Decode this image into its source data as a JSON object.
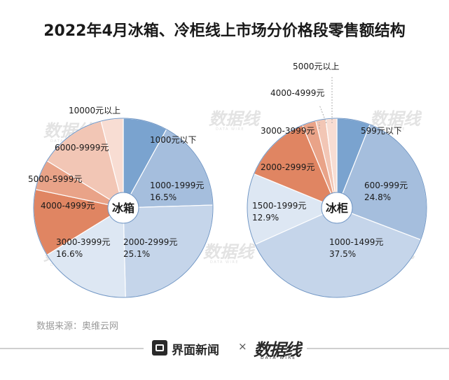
{
  "title": "2022年4月冰箱、冷柜线上市场分价格段零售额结构",
  "source": "数据来源：奥维云网",
  "footer": {
    "brand_left": "界面新闻",
    "separator": "×",
    "brand_right": "数据线",
    "brand_right_sub": "DATA WIRE"
  },
  "watermark": {
    "text": "数据线",
    "sub": "DATA WIRE"
  },
  "colors": {
    "blue_dark": "#7aa3cf",
    "blue_mid": "#a5bedd",
    "blue_light": "#c5d5ea",
    "blue_pale": "#dde7f3",
    "orange_dark": "#e08562",
    "orange_mid": "#e9a388",
    "orange_light": "#f2c6b5",
    "orange_pale": "#f8ddd3"
  },
  "chart_data": [
    {
      "type": "pie",
      "center_label": "冰箱",
      "slices": [
        {
          "label": "1000元以下",
          "value": 8.0,
          "value_label": "",
          "color": "#7aa3cf"
        },
        {
          "label": "1000-1999元",
          "value": 16.5,
          "value_label": "16.5%",
          "color": "#a5bedd"
        },
        {
          "label": "2000-2999元",
          "value": 25.1,
          "value_label": "25.1%",
          "color": "#c5d5ea"
        },
        {
          "label": "3000-3999元",
          "value": 16.6,
          "value_label": "16.6%",
          "color": "#dde7f3"
        },
        {
          "label": "4000-4999元",
          "value": 12.1,
          "value_label": "",
          "color": "#e08562"
        },
        {
          "label": "5000-5999元",
          "value": 5.5,
          "value_label": "",
          "color": "#e9a388"
        },
        {
          "label": "6000-9999元",
          "value": 12.2,
          "value_label": "",
          "color": "#f2c6b5"
        },
        {
          "label": "10000元以上",
          "value": 4.0,
          "value_label": "",
          "color": "#f8ddd3"
        }
      ]
    },
    {
      "type": "pie",
      "center_label": "冰柜",
      "slices": [
        {
          "label": "599元以下",
          "value": 6.0,
          "value_label": "",
          "color": "#7aa3cf"
        },
        {
          "label": "600-999元",
          "value": 24.8,
          "value_label": "24.8%",
          "color": "#a5bedd"
        },
        {
          "label": "1000-1499元",
          "value": 37.5,
          "value_label": "37.5%",
          "color": "#c5d5ea"
        },
        {
          "label": "1500-1999元",
          "value": 12.9,
          "value_label": "12.9%",
          "color": "#dde7f3"
        },
        {
          "label": "2000-2999元",
          "value": 12.5,
          "value_label": "",
          "color": "#e08562"
        },
        {
          "label": "3000-3999元",
          "value": 2.5,
          "value_label": "",
          "color": "#e9a388"
        },
        {
          "label": "4000-4999元",
          "value": 1.8,
          "value_label": "",
          "color": "#f2c6b5"
        },
        {
          "label": "5000元以上",
          "value": 2.0,
          "value_label": "",
          "color": "#f8ddd3"
        }
      ]
    }
  ]
}
